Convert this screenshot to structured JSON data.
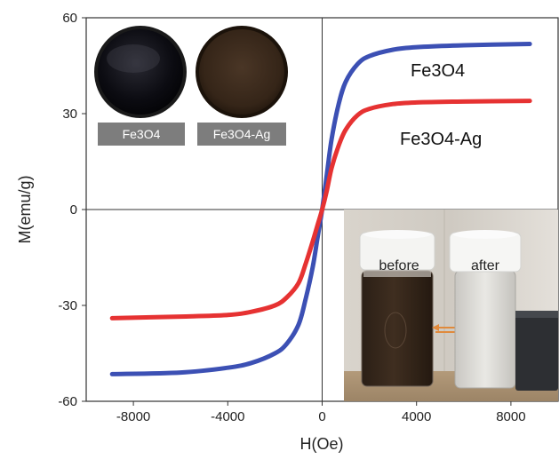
{
  "chart_data": {
    "type": "line",
    "title": "",
    "xlabel": "H(Oe)",
    "ylabel": "M(emu/g)",
    "xlim": [
      -10000,
      10000
    ],
    "ylim": [
      -60,
      60
    ],
    "x_ticks": [
      -8000,
      -4000,
      0,
      4000,
      8000
    ],
    "y_ticks": [
      -60,
      -30,
      0,
      30,
      60
    ],
    "x_tick_labels": [
      "-8000",
      "-4000",
      "0",
      "4000",
      "8000"
    ],
    "y_tick_labels": [
      "-60",
      "-30",
      "0",
      "30",
      "60"
    ],
    "grid": false,
    "series": [
      {
        "name": "Fe3O4",
        "color": "#3c50b4",
        "x": [
          -8900,
          -6000,
          -4000,
          -3000,
          -2000,
          -1500,
          -1000,
          -700,
          -400,
          -200,
          0,
          200,
          400,
          700,
          1000,
          1500,
          2000,
          3000,
          4000,
          6000,
          8800
        ],
        "y": [
          -51.5,
          -51,
          -49.5,
          -48,
          -45,
          -42,
          -36,
          -28,
          -18,
          -9,
          0,
          11,
          22,
          33,
          40,
          45.5,
          48,
          50,
          50.8,
          51.4,
          51.8
        ]
      },
      {
        "name": "Fe3O4-Ag",
        "color": "#e63232",
        "x": [
          -8900,
          -6000,
          -4000,
          -3000,
          -2000,
          -1500,
          -1000,
          -700,
          -400,
          -200,
          0,
          200,
          400,
          700,
          1000,
          1500,
          2000,
          3000,
          4000,
          6000,
          8800
        ],
        "y": [
          -34,
          -33.5,
          -33,
          -32,
          -30,
          -27.5,
          -23,
          -17,
          -10,
          -5,
          0,
          6,
          13,
          20,
          25,
          29.5,
          31.5,
          33,
          33.5,
          33.8,
          34
        ]
      }
    ],
    "annotations": {
      "fe3o4_label": "Fe3O4",
      "fe3o4ag_label": "Fe3O4-Ag"
    }
  },
  "insets": {
    "disc_captions": [
      "Fe3O4",
      "Fe3O4-Ag"
    ],
    "jar_labels": [
      "before",
      "after"
    ]
  },
  "colors": {
    "fe3o4_series": "#3c50b4",
    "fe3o4ag_series": "#e63232",
    "caption_bar": "#7d7d7d"
  }
}
